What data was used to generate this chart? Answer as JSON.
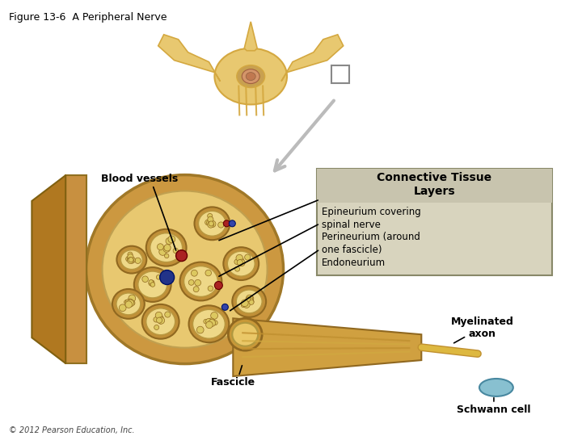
{
  "title": "Figure 13-6  A Peripheral Nerve",
  "copyright": "© 2012 Pearson Education, Inc.",
  "labels": {
    "blood_vessels": "Blood vessels",
    "connective_tissue": "Connective Tissue\nLayers",
    "epineurium": "Epineurium covering\nspinal nerve",
    "perineurium": "Perineurium (around\none fascicle)",
    "endoneurium": "Endoneurium",
    "fascicle": "Fascicle",
    "myelinated_axon": "Myelinated\naxon",
    "schwann_cell": "Schwann cell"
  },
  "colors": {
    "bg_color": "#ffffff",
    "nerve_outer": "#D4A857",
    "nerve_fill": "#E8C878",
    "nerve_fascicle": "#E8D090",
    "fascicle_fill": "#F0DC98",
    "axon_color": "#C8B860",
    "axon_myelin": "#B0C8D0",
    "box_bg": "#D8D4C0",
    "box_border": "#888880",
    "spine_color": "#D4A840",
    "spine_fill": "#E8C870",
    "arrow_gray": "#B0B0B0",
    "line_color": "#000000",
    "text_color": "#000000",
    "dark_red": "#8B0000",
    "dark_blue": "#00008B",
    "medium_red": "#CC4444",
    "medium_blue": "#4444CC"
  }
}
